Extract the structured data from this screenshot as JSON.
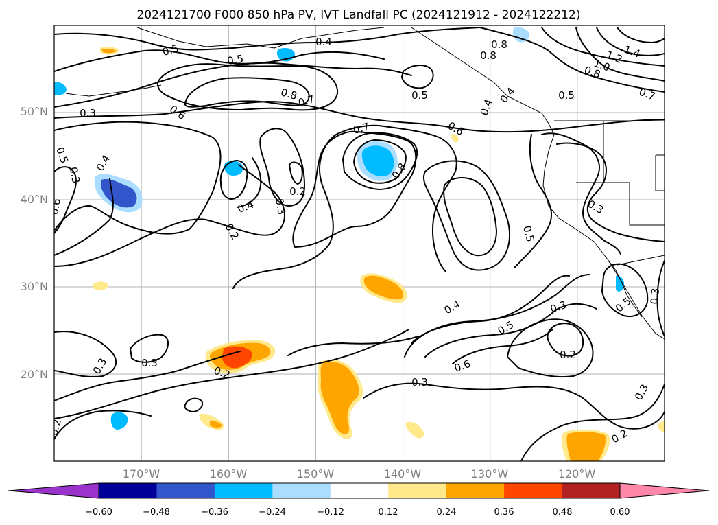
{
  "title": "2024121700 F000 850 hPa PV, IVT Landfall PC (2024121912 - 2024122212)",
  "map": {
    "lon_range": [
      -180,
      -110
    ],
    "lat_range": [
      10,
      60
    ],
    "lat_ticks": [
      "50°N",
      "40°N",
      "30°N",
      "20°N"
    ],
    "lon_ticks": [
      "170°W",
      "160°W",
      "150°W",
      "140°W",
      "130°W",
      "120°W"
    ],
    "grid": true
  },
  "contour_labels": [
    "0.5",
    "0.4",
    "0.5",
    "0.8",
    "0.7",
    "0.5",
    "0.6",
    "0.3",
    "0.5",
    "0.6",
    "0.4",
    "0.3",
    "0.4",
    "0.8",
    "0.7",
    "0.5",
    "0.6",
    "0.8",
    "0.4",
    "0.3",
    "0.2",
    "0.2",
    "0.4",
    "0.5",
    "0.3",
    "0.3",
    "0.3",
    "0.2",
    "0.6",
    "0.5",
    "0.3",
    "0.2",
    "0.3",
    "0.2",
    "0.3",
    "0.2",
    "0.3",
    "0.8",
    "1.0",
    "1.2",
    "1.4",
    "0.8",
    "0.7",
    "0.5",
    "0.4"
  ],
  "colorbar": {
    "colors": [
      "#9933cc",
      "#000099",
      "#3355cc",
      "#00bbff",
      "#aaddff",
      "#ffffff",
      "#ffe98a",
      "#ffa500",
      "#ff4500",
      "#b22222",
      "#ff88aa"
    ],
    "ticks": [
      "−0.60",
      "−0.48",
      "−0.36",
      "−0.24",
      "−0.12",
      "0.12",
      "0.24",
      "0.36",
      "0.48",
      "0.60"
    ]
  }
}
